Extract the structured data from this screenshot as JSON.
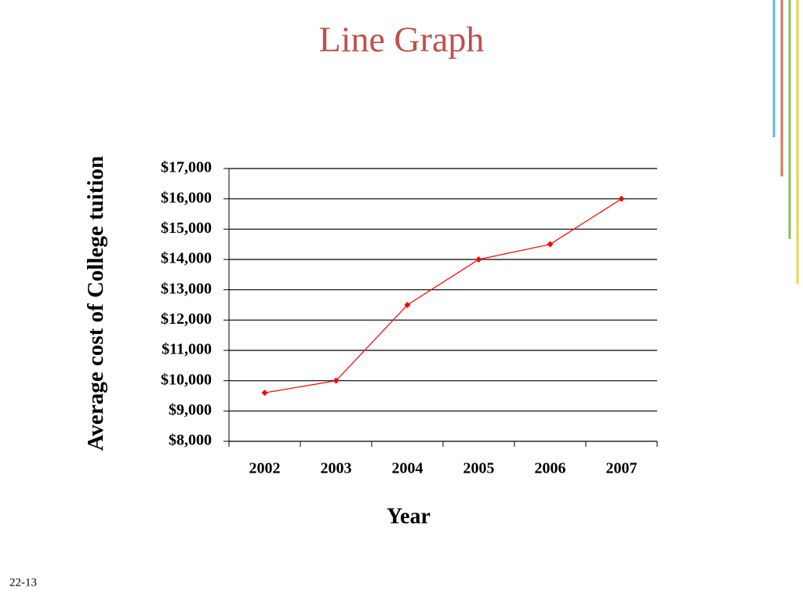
{
  "chart_data": {
    "type": "line",
    "title": "Line Graph",
    "page_number": "22-13",
    "xlabel": "Year",
    "ylabel": "Average cost of College tuition",
    "categories": [
      "2002",
      "2003",
      "2004",
      "2005",
      "2006",
      "2007"
    ],
    "values": [
      9600,
      10000,
      12500,
      14000,
      14500,
      16000
    ],
    "color": "#ff0000",
    "ylim": [
      8000,
      17000
    ],
    "yticks": [
      {
        "value": 8000,
        "label": "$8,000"
      },
      {
        "value": 9000,
        "label": "$9,000"
      },
      {
        "value": 10000,
        "label": "$10,000"
      },
      {
        "value": 11000,
        "label": "$11,000"
      },
      {
        "value": 12000,
        "label": "$12,000"
      },
      {
        "value": 13000,
        "label": "$13,000"
      },
      {
        "value": 14000,
        "label": "$14,000"
      },
      {
        "value": 15000,
        "label": "$15,000"
      },
      {
        "value": 16000,
        "label": "$16,000"
      },
      {
        "value": 17000,
        "label": "$17,000"
      }
    ],
    "grid": true
  }
}
